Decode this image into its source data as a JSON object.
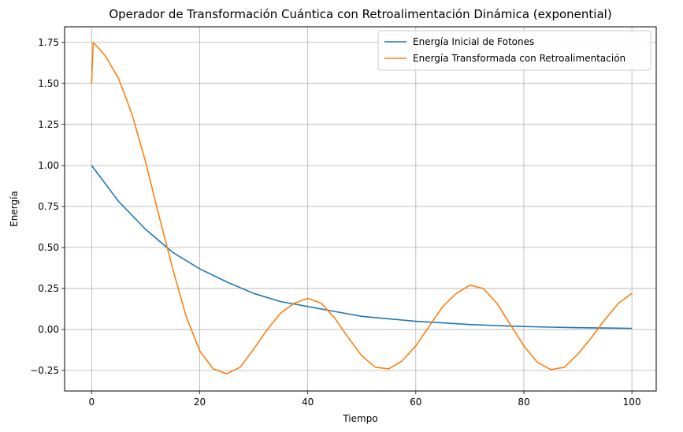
{
  "chart_data": {
    "type": "line",
    "title": "Operador de Transformación Cuántica con Retroalimentación Dinámica (exponential)",
    "xlabel": "Tiempo",
    "ylabel": "Energía",
    "xlim": [
      -5,
      104.5
    ],
    "ylim": [
      -0.375,
      1.845
    ],
    "xticks": [
      0,
      20,
      40,
      60,
      80,
      100
    ],
    "xtick_labels": [
      "0",
      "20",
      "40",
      "60",
      "80",
      "100"
    ],
    "yticks": [
      -0.25,
      0.0,
      0.25,
      0.5,
      0.75,
      1.0,
      1.25,
      1.5,
      1.75
    ],
    "ytick_labels": [
      "−0.25",
      "0.00",
      "0.25",
      "0.50",
      "0.75",
      "1.00",
      "1.25",
      "1.50",
      "1.75"
    ],
    "grid": true,
    "legend_position": "top-right",
    "series": [
      {
        "name": "Energía Inicial de Fotones",
        "color": "#1f77b4",
        "x": [
          0,
          5,
          10,
          15,
          20,
          25,
          30,
          35,
          40,
          45,
          50,
          55,
          60,
          65,
          70,
          75,
          80,
          85,
          90,
          95,
          100
        ],
        "y": [
          1.0,
          0.78,
          0.61,
          0.47,
          0.37,
          0.29,
          0.22,
          0.17,
          0.14,
          0.11,
          0.08,
          0.065,
          0.05,
          0.04,
          0.03,
          0.024,
          0.018,
          0.014,
          0.011,
          0.009,
          0.007
        ]
      },
      {
        "name": "Energía Transformada con Retroalimentación",
        "color": "#ff7f0e",
        "x": [
          0,
          0.3,
          2.5,
          5,
          7.5,
          10,
          12.5,
          14,
          15,
          17.5,
          20,
          22.5,
          25,
          27.5,
          30,
          32.5,
          35,
          37.5,
          40,
          42.5,
          45,
          47.5,
          50,
          52.5,
          55,
          57.5,
          60,
          62.5,
          65,
          67.5,
          70,
          72.5,
          75,
          77.5,
          80,
          82.5,
          85,
          87.5,
          90,
          92.5,
          95,
          97.5,
          100
        ],
        "y": [
          1.5,
          1.75,
          1.67,
          1.53,
          1.31,
          1.02,
          0.69,
          0.5,
          0.37,
          0.08,
          -0.13,
          -0.24,
          -0.27,
          -0.23,
          -0.12,
          0.0,
          0.1,
          0.16,
          0.19,
          0.16,
          0.07,
          -0.05,
          -0.16,
          -0.23,
          -0.24,
          -0.19,
          -0.1,
          0.02,
          0.14,
          0.22,
          0.27,
          0.25,
          0.16,
          0.03,
          -0.1,
          -0.2,
          -0.245,
          -0.23,
          -0.15,
          -0.05,
          0.06,
          0.16,
          0.22
        ]
      }
    ]
  }
}
